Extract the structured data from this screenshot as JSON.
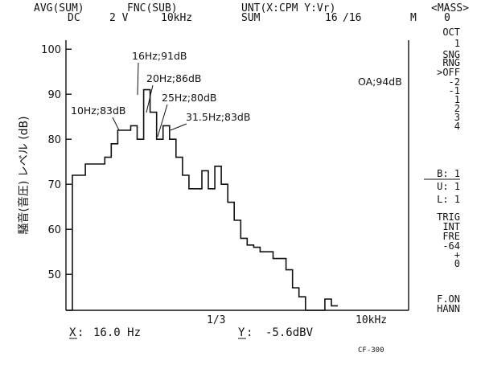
{
  "header": {
    "line1": [
      "AVG(SUM)",
      "FNC(SUB)",
      "UNT(X:CPM Y:Vr)",
      "<MASS>"
    ],
    "line2": [
      "DC",
      "2 V",
      "10kHz",
      "SUM",
      "16",
      "/16",
      "M",
      "0"
    ]
  },
  "side_panel": {
    "lines": [
      "OCT",
      "1",
      "SNG",
      "RNG",
      ">OFF",
      "-2",
      "-1",
      "1",
      "2",
      "3",
      "4",
      "B:  1",
      "U:  1",
      "L:  1",
      "TRIG",
      "INT",
      "FRE",
      "-64",
      "+",
      "0",
      "F.ON",
      "HANN"
    ]
  },
  "footer": {
    "x_label": "X",
    "x_value": "16.0 Hz",
    "y_label": "Y",
    "y_value": "-5.6dBV",
    "model": "CF-300"
  },
  "chart_data": {
    "type": "line",
    "title": "",
    "ylabel": "騒音(音圧) レベル (dB)",
    "xlabel": "",
    "ylim": [
      42,
      102
    ],
    "yticks": [
      100,
      90,
      80,
      70,
      60,
      50
    ],
    "x_ticks_text": [
      "1/3",
      "10kHz"
    ],
    "grid": false,
    "overall_annotation": "OA;94dB",
    "annotations": [
      {
        "text": "10Hz;83dB",
        "band": 10,
        "value": 83
      },
      {
        "text": "16Hz;91dB",
        "band": 12,
        "value": 91
      },
      {
        "text": "20Hz;86dB",
        "band": 13,
        "value": 86
      },
      {
        "text": "25Hz;80dB",
        "band": 14,
        "value": 80
      },
      {
        "text": "31.5Hz;83dB",
        "band": 15,
        "value": 83
      }
    ],
    "series": [
      {
        "values": [
          42,
          72,
          72,
          74.5,
          74.5,
          74.5,
          76,
          79,
          82,
          82,
          83,
          80,
          91,
          86,
          80,
          83,
          80,
          76,
          72,
          69,
          69,
          73,
          69,
          74,
          70,
          66,
          62,
          58,
          56.5,
          56,
          55,
          55,
          53.5,
          53.5,
          51,
          47,
          45,
          42,
          42,
          42,
          44.5,
          43
        ]
      }
    ]
  }
}
